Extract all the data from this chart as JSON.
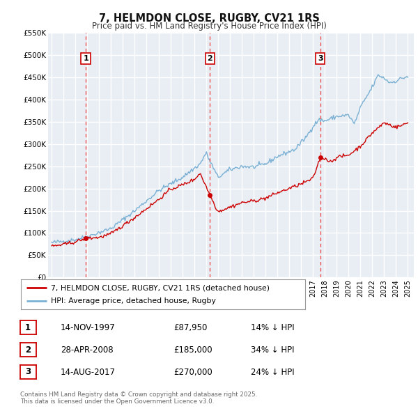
{
  "title": "7, HELMDON CLOSE, RUGBY, CV21 1RS",
  "subtitle": "Price paid vs. HM Land Registry's House Price Index (HPI)",
  "legend_label_red": "7, HELMDON CLOSE, RUGBY, CV21 1RS (detached house)",
  "legend_label_blue": "HPI: Average price, detached house, Rugby",
  "red_color": "#cc0000",
  "blue_color": "#7ab0d4",
  "background_color": "#e8eef4",
  "grid_color": "#ffffff",
  "sale_prices": [
    87950,
    185000,
    270000
  ],
  "sale_labels": [
    "1",
    "2",
    "3"
  ],
  "sale_hpi_diff": [
    "14% ↓ HPI",
    "34% ↓ HPI",
    "24% ↓ HPI"
  ],
  "sale_date_labels": [
    "14-NOV-1997",
    "28-APR-2008",
    "14-AUG-2017"
  ],
  "sale_price_labels": [
    "£87,950",
    "£185,000",
    "£270,000"
  ],
  "sale_year_floats": [
    1997.875,
    2008.333,
    2017.625
  ],
  "ylim": [
    0,
    550000
  ],
  "yticks": [
    0,
    50000,
    100000,
    150000,
    200000,
    250000,
    300000,
    350000,
    400000,
    450000,
    500000,
    550000
  ],
  "ytick_labels": [
    "£0",
    "£50K",
    "£100K",
    "£150K",
    "£200K",
    "£250K",
    "£300K",
    "£350K",
    "£400K",
    "£450K",
    "£500K",
    "£550K"
  ],
  "footer": "Contains HM Land Registry data © Crown copyright and database right 2025.\nThis data is licensed under the Open Government Licence v3.0.",
  "xlim_start": 1994.7,
  "xlim_end": 2025.5,
  "hpi_anchors_x": [
    1995.0,
    1997.0,
    1998.0,
    2000.0,
    2002.0,
    2004.0,
    2006.0,
    2007.5,
    2008.0,
    2009.0,
    2010.0,
    2011.0,
    2012.0,
    2013.0,
    2014.0,
    2015.5,
    2016.5,
    2017.0,
    2017.5,
    2018.0,
    2019.0,
    2020.0,
    2020.5,
    2021.0,
    2022.0,
    2022.5,
    2023.0,
    2023.5,
    2024.0,
    2024.5,
    2025.0
  ],
  "hpi_anchors_y": [
    78000,
    85000,
    92000,
    110000,
    150000,
    195000,
    225000,
    255000,
    280000,
    225000,
    242000,
    250000,
    248000,
    255000,
    272000,
    288000,
    318000,
    340000,
    355000,
    352000,
    362000,
    365000,
    345000,
    382000,
    428000,
    455000,
    448000,
    438000,
    442000,
    448000,
    452000
  ],
  "red_anchors_x": [
    1995.0,
    1996.0,
    1997.0,
    1997.875,
    1999.0,
    2000.0,
    2002.0,
    2004.0,
    2005.0,
    2006.0,
    2007.0,
    2007.5,
    2008.333,
    2009.0,
    2010.0,
    2011.0,
    2012.0,
    2013.0,
    2014.0,
    2015.0,
    2016.0,
    2017.0,
    2017.625,
    2018.0,
    2018.5,
    2019.0,
    2020.0,
    2021.0,
    2022.0,
    2023.0,
    2023.5,
    2024.0,
    2024.5,
    2025.0
  ],
  "red_anchors_y": [
    70000,
    74000,
    80000,
    87950,
    90000,
    98000,
    135000,
    175000,
    198000,
    208000,
    220000,
    235000,
    185000,
    148000,
    158000,
    168000,
    172000,
    178000,
    190000,
    200000,
    210000,
    222000,
    270000,
    268000,
    260000,
    270000,
    275000,
    295000,
    325000,
    348000,
    343000,
    338000,
    342000,
    348000
  ]
}
